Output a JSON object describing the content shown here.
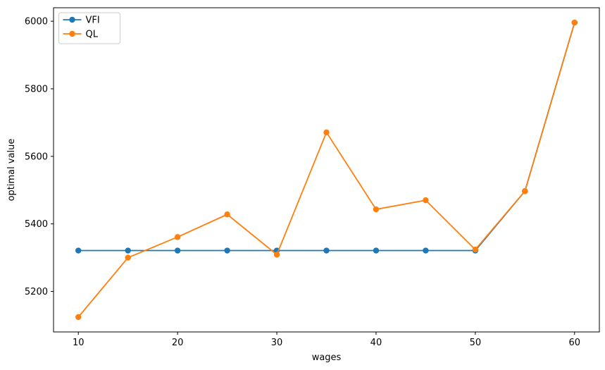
{
  "chart_data": {
    "type": "line",
    "title": "",
    "xlabel": "wages",
    "ylabel": "optimal value",
    "x": [
      10,
      15,
      20,
      25,
      30,
      35,
      40,
      45,
      50,
      55,
      60
    ],
    "series": [
      {
        "name": "VFI",
        "color": "#1f77b4",
        "marker": "circle",
        "values": [
          5321,
          5321,
          5321,
          5321,
          5321,
          5321,
          5321,
          5321,
          5321,
          5497,
          5996
        ]
      },
      {
        "name": "QL",
        "color": "#ff7f0e",
        "marker": "circle",
        "values": [
          5124,
          5300,
          5361,
          5428,
          5309,
          5671,
          5443,
          5470,
          5324,
          5497,
          5996
        ]
      }
    ],
    "xticks": [
      10,
      20,
      30,
      40,
      50,
      60
    ],
    "yticks": [
      5200,
      5400,
      5600,
      5800,
      6000
    ],
    "xlim": [
      7.5,
      62.5
    ],
    "ylim": [
      5080,
      6040
    ],
    "grid": false,
    "legend": {
      "position": "upper left",
      "entries": [
        "VFI",
        "QL"
      ]
    },
    "axis_color": "#000000",
    "background_color": "#ffffff",
    "legend_border_color": "#cccccc"
  }
}
